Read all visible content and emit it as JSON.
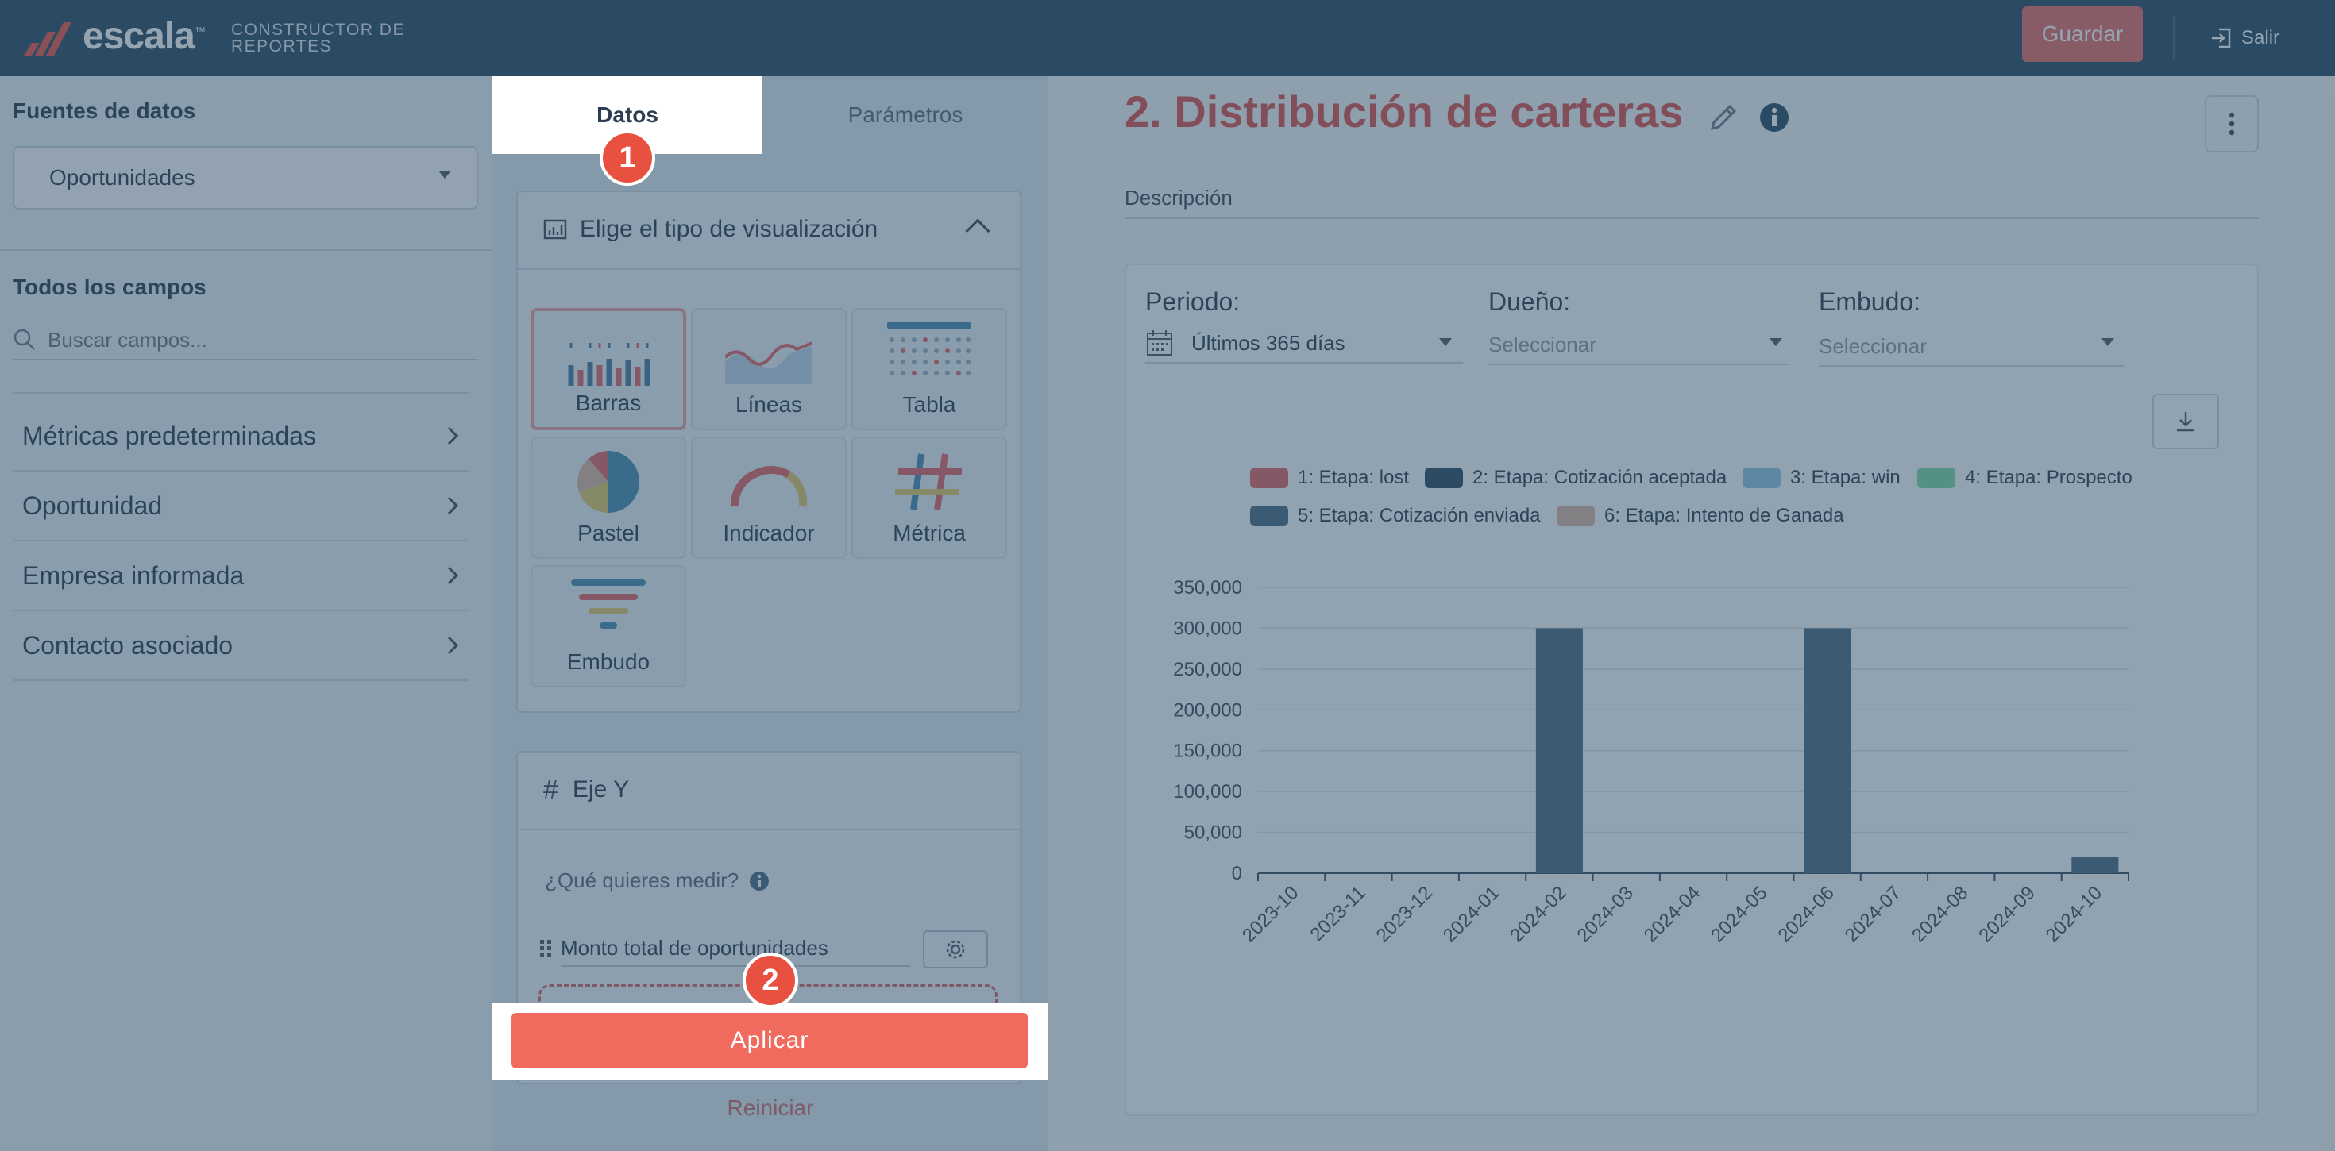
{
  "header": {
    "logo_text": "escala",
    "logo_tm": "™",
    "subtitle_line1": "CONSTRUCTOR DE",
    "subtitle_line2": "REPORTES",
    "save_label": "Guardar",
    "exit_label": "Salir"
  },
  "sidebar": {
    "data_sources_label": "Fuentes de datos",
    "data_source_value": "Oportunidades",
    "all_fields_label": "Todos los campos",
    "search_placeholder": "Buscar campos...",
    "categories": [
      {
        "label": "Métricas predeterminadas"
      },
      {
        "label": "Oportunidad"
      },
      {
        "label": "Empresa informada"
      },
      {
        "label": "Contacto asociado"
      }
    ]
  },
  "panel": {
    "tabs": [
      {
        "label": "Datos",
        "active": true
      },
      {
        "label": "Parámetros",
        "active": false
      }
    ],
    "vis_header": "Elige el tipo de visualización",
    "vis_types": [
      {
        "label": "Barras",
        "icon": "bar-chart-icon",
        "selected": true
      },
      {
        "label": "Líneas",
        "icon": "line-chart-icon",
        "selected": false
      },
      {
        "label": "Tabla",
        "icon": "table-icon",
        "selected": false
      },
      {
        "label": "Pastel",
        "icon": "pie-chart-icon",
        "selected": false
      },
      {
        "label": "Indicador",
        "icon": "gauge-icon",
        "selected": false
      },
      {
        "label": "Métrica",
        "icon": "hash-icon",
        "selected": false
      },
      {
        "label": "Embudo",
        "icon": "funnel-icon",
        "selected": false
      }
    ],
    "y_axis_title": "Eje Y",
    "y_question": "¿Qué quieres medir?",
    "y_field": "Monto total de oportunidades",
    "apply_label": "Aplicar",
    "reset_label": "Reiniciar",
    "step_markers": [
      "1",
      "2"
    ]
  },
  "report": {
    "title": "2. Distribución de carteras",
    "description_label": "Descripción",
    "filters": {
      "period_label": "Periodo:",
      "period_value": "Últimos 365 días",
      "owner_label": "Dueño:",
      "owner_placeholder": "Seleccionar",
      "funnel_label": "Embudo:",
      "funnel_placeholder": "Seleccionar"
    }
  },
  "colors": {
    "topbar": "#2b4a63",
    "accent": "#f06b5d",
    "title_red": "#d9534f",
    "bar": "#4a6c86"
  },
  "chart_data": {
    "type": "bar",
    "legend_position": "top",
    "series_legend": [
      {
        "name": "1: Etapa: lost",
        "color": "#e06666"
      },
      {
        "name": "2: Etapa: Cotización aceptada",
        "color": "#2b4a63"
      },
      {
        "name": "3: Etapa: win",
        "color": "#8ec5e0"
      },
      {
        "name": "4: Etapa: Prospecto",
        "color": "#7fd6a4"
      },
      {
        "name": "5: Etapa: Cotización enviada",
        "color": "#4a6c86"
      },
      {
        "name": "6: Etapa: Intento de Ganada",
        "color": "#d8b7a0"
      }
    ],
    "categories": [
      "2023-10",
      "2023-11",
      "2023-12",
      "2024-01",
      "2024-02",
      "2024-03",
      "2024-04",
      "2024-05",
      "2024-06",
      "2024-07",
      "2024-08",
      "2024-09",
      "2024-10"
    ],
    "values": [
      0,
      0,
      0,
      0,
      300000,
      0,
      0,
      0,
      300000,
      0,
      0,
      0,
      20000
    ],
    "series_name": "5: Etapa: Cotización enviada",
    "ylim": [
      0,
      350000
    ],
    "yticks": [
      "0",
      "50,000",
      "100,000",
      "150,000",
      "200,000",
      "250,000",
      "300,000",
      "350,000"
    ],
    "grid": true
  }
}
